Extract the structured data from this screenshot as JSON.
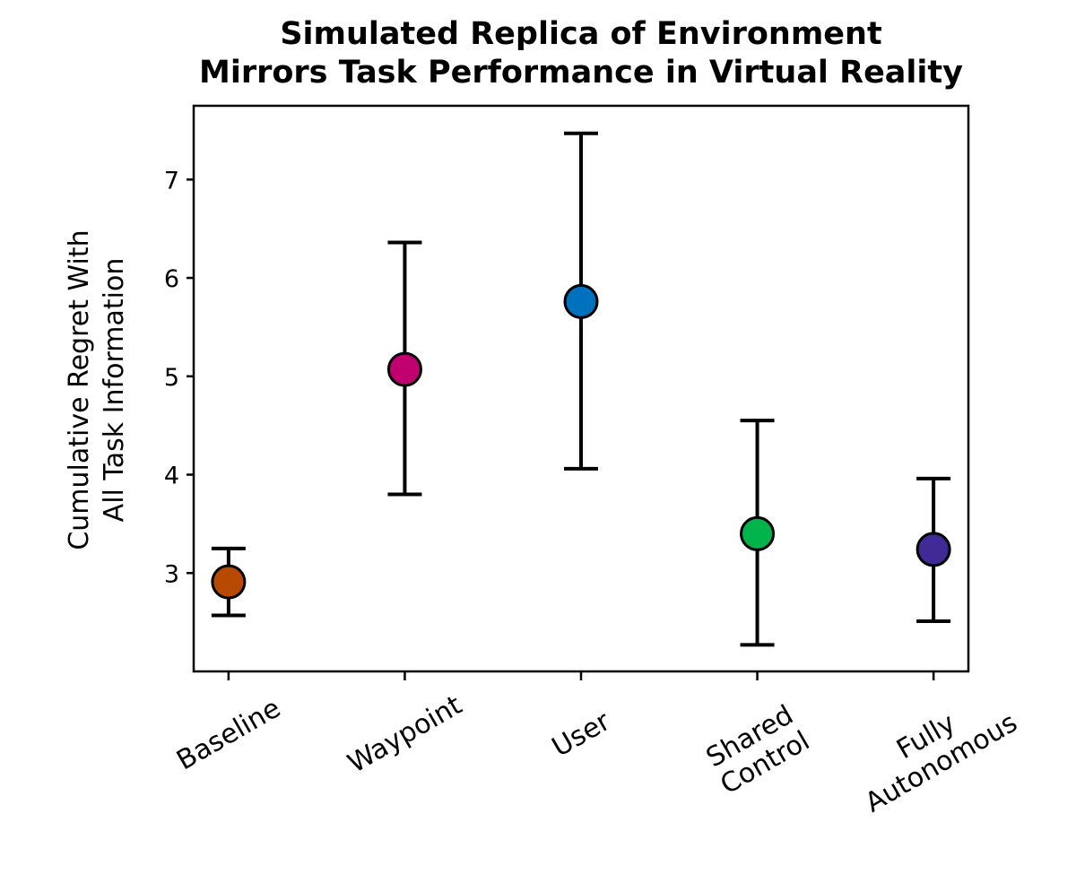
{
  "chart_data": {
    "type": "scatter",
    "title": [
      "Simulated Replica of Environment",
      "Mirrors Task Performance in Virtual Reality"
    ],
    "ylabel": [
      "Cumulative Regret With",
      "All Task Information"
    ],
    "xlabel": "",
    "ylim": [
      2.0,
      7.75
    ],
    "yticks": [
      3,
      4,
      5,
      6,
      7
    ],
    "grid": false,
    "categories": [
      [
        "Baseline"
      ],
      [
        "Waypoint"
      ],
      [
        "User"
      ],
      [
        "Shared",
        "Control"
      ],
      [
        "Fully",
        "Autonomous"
      ]
    ],
    "points": [
      {
        "mean": 2.91,
        "lower": 2.57,
        "upper": 3.25,
        "color": "#B84A00"
      },
      {
        "mean": 5.07,
        "lower": 3.8,
        "upper": 6.36,
        "color": "#C0006E"
      },
      {
        "mean": 5.76,
        "lower": 4.06,
        "upper": 7.47,
        "color": "#0071BC"
      },
      {
        "mean": 3.4,
        "lower": 2.27,
        "upper": 4.55,
        "color": "#00B34A"
      },
      {
        "mean": 3.24,
        "lower": 2.51,
        "upper": 3.96,
        "color": "#3F2A96"
      }
    ]
  }
}
